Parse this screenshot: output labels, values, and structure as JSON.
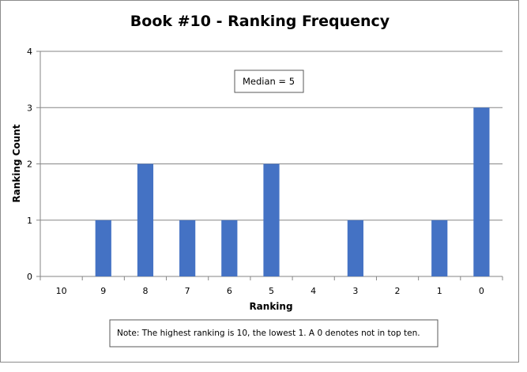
{
  "chart_data": {
    "type": "bar",
    "title": "Book #10 - Ranking Frequency",
    "xlabel": "Ranking",
    "ylabel": "Ranking Count",
    "categories": [
      "10",
      "9",
      "8",
      "7",
      "6",
      "5",
      "4",
      "3",
      "2",
      "1",
      "0"
    ],
    "values": [
      0,
      1,
      2,
      1,
      1,
      2,
      0,
      1,
      0,
      1,
      3
    ],
    "ylim": [
      0,
      4
    ],
    "yticks": [
      "0",
      "1",
      "2",
      "3",
      "4"
    ],
    "grid": true,
    "bar_color": "#4472C4",
    "annotations": {
      "median": "Median = 5",
      "note": "Note: The highest ranking is 10, the lowest 1. A 0 denotes not in top ten."
    }
  }
}
